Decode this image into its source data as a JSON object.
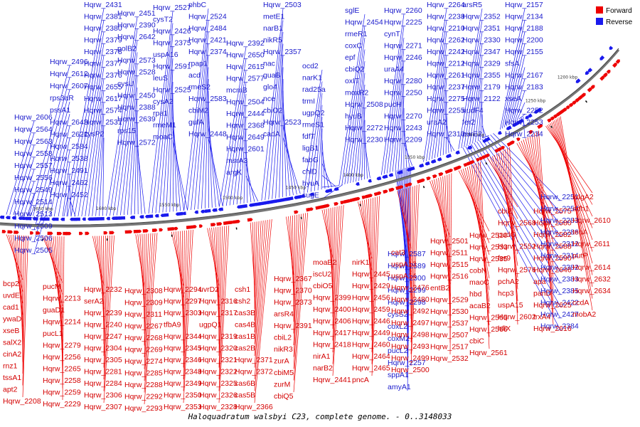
{
  "title": "Haloquadratum walsbyi C23, complete genome. - 0..3148033",
  "legend": {
    "forward": {
      "label": "Forward",
      "color": "#ee0000"
    },
    "reverse": {
      "label": "Reverse",
      "color": "#1a1aee"
    }
  },
  "scale_ticks": [
    "1200 kbp",
    "1250 kbp",
    "1300 kbp",
    "1350 kbp",
    "1400 kbp",
    "1450 kbp",
    "1500 kbp",
    "1550 kbp",
    "1600 kbp",
    "1650 kbp"
  ],
  "reverse_labels": [
    "Hqrw_2606",
    "Hqrw_2564",
    "Hqrw_2563",
    "Hqrw_2558",
    "Hqrw_2557",
    "Hqrw_2556",
    "Hqrw_2549",
    "Hqrw_2514",
    "Hqrw_2513",
    "Hqrw_2509",
    "Hqrw_2506",
    "Hqrw_2505",
    "Hqrw_2496",
    "Hqrw_2612",
    "Hqrw_2607",
    "rps3aR",
    "pssA1",
    "Hqrw_2643",
    "Hqrw_2622",
    "Hqrw_2584",
    "Hqrw_2538",
    "Hqrw_2491",
    "Hqrw_2462",
    "Hqrw_2452",
    "Hqrw_2431",
    "Hqrw_2381",
    "Hqrw_2380",
    "Hqrw_2379",
    "Hqrw_2378",
    "Hqrw_2377",
    "Hqrw_2376",
    "Hqrw_2655",
    "Hqrw_2617",
    "Hqrw_2574",
    "Hqrw_2531",
    "cysP2",
    "Hqrw_2451",
    "Hqrw_2390",
    "Hqrw_2642",
    "polB2",
    "Hqrw_2573",
    "Hqrw_2528",
    "cysU",
    "Hqrw_2450",
    "Hqrw_2388",
    "Hqrw_2639",
    "rps15",
    "Hqrw_2572",
    "Hqrw_2527",
    "cysT2",
    "Hqrw_2426",
    "Hqrw_2375",
    "uspA16",
    "Hqrw_2591",
    "leuS",
    "Hqrw_2525",
    "cysA2",
    "rpa1",
    "rmeM1",
    "moaC",
    "phbC",
    "Hqrw_2524",
    "Hqrw_2484",
    "Hqrw_2421",
    "Hqrw_2374",
    "rpap1",
    "acd",
    "rmeS2",
    "Hqrw_2583",
    "cbiM2",
    "gufA",
    "Hqrw_2448",
    "Hqrw_2392",
    "Hqrw_2650",
    "Hqrw_2615",
    "Hqrw_2577",
    "mcmB",
    "Hqrw_2504",
    "Hqrw_2444",
    "Hqrw_2368",
    "Hqrw_2649",
    "Hqrw_2601",
    "msrA3",
    "argK",
    "Hqrw_2503",
    "metE1",
    "narB1",
    "nikR5",
    "Hqrw_2357",
    "nac",
    "guaB",
    "glo4",
    "nce",
    "cbiO2",
    "Hqrw_2523",
    "cadA",
    "ocd2",
    "narK1",
    "rad25a",
    "trmI",
    "ugpQ2",
    "rmeS1",
    "fdfT",
    "ligB1",
    "fabG",
    "chlD",
    "hyuA",
    "sugE",
    "sglE",
    "Hqrw_2454",
    "rmeR1",
    "coxC",
    "epf",
    "cbiQ2",
    "oxIT",
    "moxR2",
    "Hqrw_2508",
    "hyuB",
    "Hqrw_2272",
    "Hqrw_2230",
    "Hqrw_2260",
    "Hqrw_2225",
    "cynT",
    "Hqrw_2271",
    "Hqrw_2246",
    "uraA4",
    "Hqrw_2280",
    "Hqrw_2250",
    "pucH",
    "Hqrw_2270",
    "Hqrw_2243",
    "Hqrw_2209",
    "Hqrw_2264",
    "Hqrw_2238",
    "Hqrw_2210",
    "Hqrw_2262",
    "Hqrw_2242",
    "Hqrw_2212",
    "Hqrw_2261",
    "Hqrw_2237",
    "Hqrw_2275",
    "Hqrw_2255",
    "uraA2",
    "Hqrw_2310",
    "arsR5",
    "Hqrw_2352",
    "Hqrw_2351",
    "Hqrw_2330",
    "Hqrw_2347",
    "Hqrw_2329",
    "Hqrw_2355",
    "Hqrw_2179",
    "Hqrw_2122",
    "nudF4",
    "fer2",
    "purE2",
    "Hqrw_2157",
    "Hqrw_2134",
    "Hqrw_2188",
    "Hqrw_2200",
    "Hqrw_2155",
    "sfsA",
    "Hqrw_2167",
    "Hqrw_2183",
    "xseA",
    "Hqrw_2252",
    "Hqrw_2253",
    "Hqrw_2234",
    "Hqrw_2251",
    "Hqrw_2254",
    "Hqrw_2283",
    "Hqrw_2286",
    "Hqrw_2312",
    "Hqrw_2314",
    "Hqrw_2382",
    "Hqrw_2383",
    "Hqrw_2385",
    "Hqrw_2422",
    "Hqrw_2427",
    "Hqrw_2384",
    "Hqrw_2587",
    "Hqrw_2589",
    "Hqrw_2300",
    "Hqrw_2299",
    "Hqrw_2298",
    "cysS2",
    "coxL2",
    "coxM2",
    "pucL2",
    "Hqrw_2257",
    "sppA1",
    "amyA1"
  ],
  "forward_labels": [
    "bcp2",
    "uvdE",
    "cad1",
    "ywaD",
    "xseB",
    "salX2",
    "cinA2",
    "rnz1",
    "tssA1",
    "apt2",
    "Hqrw_2208",
    "pucM",
    "Hqrw_2213",
    "guaD1",
    "Hqrw_2214",
    "pucL1",
    "Hqrw_2279",
    "Hqrw_2256",
    "Hqrw_2265",
    "Hqrw_2258",
    "Hqrw_2259",
    "Hqrw_2229",
    "Hqrw_2232",
    "serA2",
    "Hqrw_2239",
    "Hqrw_2240",
    "Hqrw_2247",
    "Hqrw_2304",
    "Hqrw_2305",
    "Hqrw_2281",
    "Hqrw_2284",
    "Hqrw_2306",
    "Hqrw_2307",
    "Hqrw_2308",
    "Hqrw_2309",
    "Hqrw_2311",
    "Hqrw_2267",
    "Hqrw_2268",
    "Hqrw_2269",
    "Hqrw_2274",
    "Hqrw_2285",
    "Hqrw_2288",
    "Hqrw_2292",
    "Hqrw_2293",
    "Hqrw_2294",
    "Hqrw_2297",
    "Hqrw_2303",
    "tfbA9",
    "Hqrw_2344",
    "Hqrw_2345",
    "Hqrw_2346",
    "Hqrw_2348",
    "Hqrw_2349",
    "Hqrw_2350",
    "Hqrw_2353",
    "uvrD2",
    "Hqrw_2316",
    "Hqrw_2317",
    "ugpQ1",
    "Hqrw_2319",
    "Hqrw_2320",
    "Hqrw_2321",
    "Hqrw_2322",
    "Hqrw_2325",
    "Hqrw_2326",
    "Hqrw_2328",
    "csh1",
    "csh2",
    "cas3B",
    "cas4B",
    "cas1B",
    "cas2B",
    "Hqrw_2371",
    "Hqrw_2372",
    "cas6B",
    "cas5B",
    "Hqrw_2366",
    "Hqrw_2367",
    "Hqrw_2370",
    "Hqrw_2373",
    "arsR4",
    "Hqrw_2391",
    "cbiL2",
    "nikR3",
    "zurA",
    "cbiM5",
    "zurM",
    "cbiQ5",
    "moaB2",
    "iscU2",
    "cbiO5",
    "Hqrw_2399",
    "Hqrw_2400",
    "Hqrw_2406",
    "Hqrw_2417",
    "Hqrw_2418",
    "nirA1",
    "narB2",
    "Hqrw_2441",
    "nirK1",
    "Hqrw_2445",
    "Hqrw_2429",
    "Hqrw_2456",
    "Hqrw_2459",
    "Hqrw_2446",
    "Hqrw_2449",
    "Hqrw_2460",
    "Hqrw_2464",
    "Hqrw_2465",
    "pncA",
    "cat3",
    "uspA13",
    "uspA14",
    "Hqrw_2476",
    "Hqrw_2480",
    "Hqrw_2492",
    "Hqrw_2497",
    "Hqrw_2498",
    "Hqrw_2493",
    "Hqrw_2499",
    "Hqrw_2500",
    "Hqrw_2501",
    "Hqrw_2511",
    "Hqrw_2515",
    "Hqrw_2516",
    "entB2",
    "Hqrw_2529",
    "Hqrw_2530",
    "Hqrw_2537",
    "Hqrw_2507",
    "Hqrw_2517",
    "Hqrw_2532",
    "Hqrw_2510",
    "Hqrw_2533",
    "Hqrw_2535",
    "cobN",
    "maoC",
    "hbd",
    "acaB2",
    "Hqrw_2565",
    "Hqrw_2566",
    "cbiC",
    "Hqrw_2561",
    "cbiE",
    "Hqrw_2568",
    "pudO",
    "Hqrw_2552",
    "fer9",
    "Hqrw_2576",
    "pchA2",
    "hcp3",
    "uspA15",
    "Hqrw_2602",
    "hflX",
    "Hqrw_2575",
    "Hqrw_2580",
    "Hqrw_2582",
    "Hqrw_2588",
    "Hqrw_2590",
    "Hqrw_2646",
    "apa",
    "panD",
    "Hqrw_2625",
    "trxA4",
    "Hqrw_2616",
    "kdgA2",
    "adh1",
    "Hqrw_2610",
    "tenA",
    "Hqrw_2611",
    "putP",
    "Hqrw_2614",
    "Hqrw_2632",
    "Hqrw_2634",
    "ccdA",
    "mobA2"
  ]
}
